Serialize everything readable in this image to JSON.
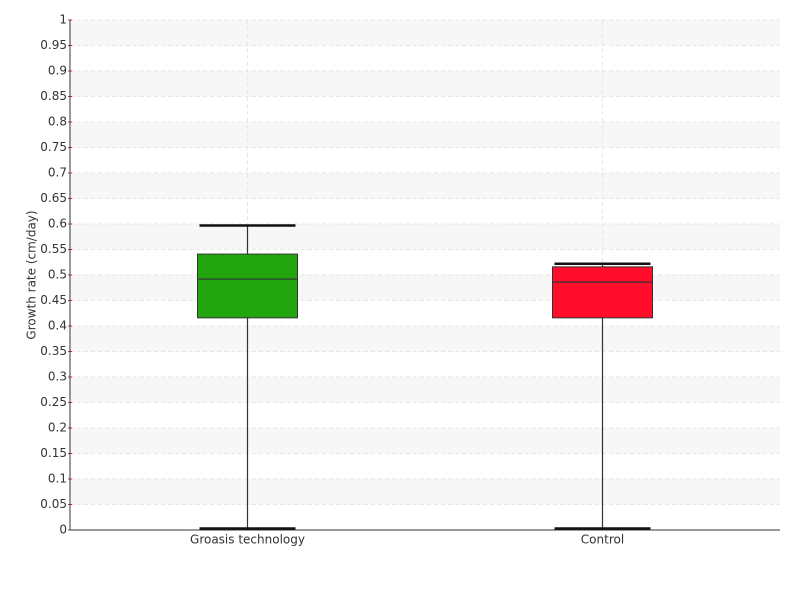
{
  "chart_data": {
    "type": "box",
    "y_label": "Growth rate (cm/day)",
    "categories": [
      "Groasis technology",
      "Control"
    ],
    "boxes": [
      {
        "min": 0,
        "q1": 0.416,
        "median": 0.492,
        "q3": 0.541,
        "max": 0.597,
        "color": "#22a50f"
      },
      {
        "min": 0,
        "q1": 0.416,
        "median": 0.486,
        "q3": 0.516,
        "max": 0.522,
        "color": "#ff0d2a"
      }
    ],
    "ylim": [
      0,
      1
    ],
    "yticks": [
      0,
      0.05,
      0.1,
      0.15,
      0.2,
      0.25,
      0.3,
      0.35,
      0.4,
      0.45,
      0.5,
      0.55,
      0.6,
      0.65,
      0.7,
      0.75,
      0.8,
      0.85,
      0.9,
      0.95,
      1
    ],
    "grid": true
  }
}
